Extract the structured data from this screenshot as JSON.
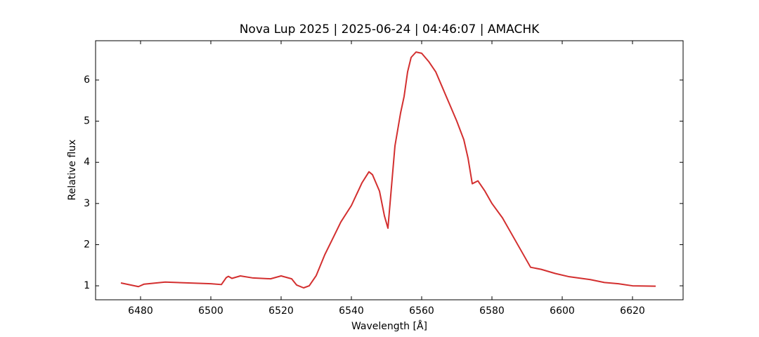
{
  "chart_data": {
    "type": "line",
    "title": "Nova Lup 2025 | 2025-06-24 | 04:46:07 | AMACHK",
    "x_label": "Wavelength [Å]",
    "y_label": "Relative flux",
    "xlim": [
      6467.2,
      6634.4
    ],
    "ylim": [
      0.66,
      6.955
    ],
    "xticks": [
      6480,
      6500,
      6520,
      6540,
      6560,
      6580,
      6600,
      6620
    ],
    "yticks": [
      1,
      2,
      3,
      4,
      5,
      6
    ],
    "grid": false,
    "tick_direction": "in",
    "x": [
      6474.4,
      6479.4,
      6481,
      6487,
      6500,
      6503,
      6504.4,
      6505,
      6506,
      6508.4,
      6512,
      6517,
      6520,
      6523,
      6524.4,
      6526.4,
      6528,
      6530,
      6532.4,
      6535,
      6537,
      6540,
      6543,
      6545,
      6546,
      6548,
      6549.4,
      6550.4,
      6551.2,
      6552.4,
      6554,
      6555,
      6556,
      6557,
      6558.4,
      6560,
      6562,
      6564,
      6566,
      6568,
      6570,
      6572,
      6573.2,
      6574.4,
      6576,
      6578,
      6580,
      6583,
      6585,
      6588,
      6591,
      6594,
      6598,
      6602,
      6608,
      6612,
      6616,
      6620,
      6626.6
    ],
    "series": [
      {
        "name": "Nova Lup 2025",
        "color": "#d32f2f",
        "values": [
          1.07,
          0.98,
          1.04,
          1.09,
          1.05,
          1.03,
          1.2,
          1.23,
          1.18,
          1.24,
          1.19,
          1.17,
          1.24,
          1.17,
          1.02,
          0.95,
          1.0,
          1.25,
          1.75,
          2.2,
          2.55,
          2.95,
          3.5,
          3.77,
          3.7,
          3.3,
          2.7,
          2.4,
          3.2,
          4.4,
          5.2,
          5.6,
          6.2,
          6.55,
          6.68,
          6.65,
          6.45,
          6.2,
          5.8,
          5.4,
          5.0,
          4.55,
          4.1,
          3.48,
          3.55,
          3.3,
          3.0,
          2.65,
          2.35,
          1.9,
          1.45,
          1.4,
          1.3,
          1.22,
          1.15,
          1.08,
          1.05,
          1.0,
          0.99
        ]
      }
    ]
  }
}
